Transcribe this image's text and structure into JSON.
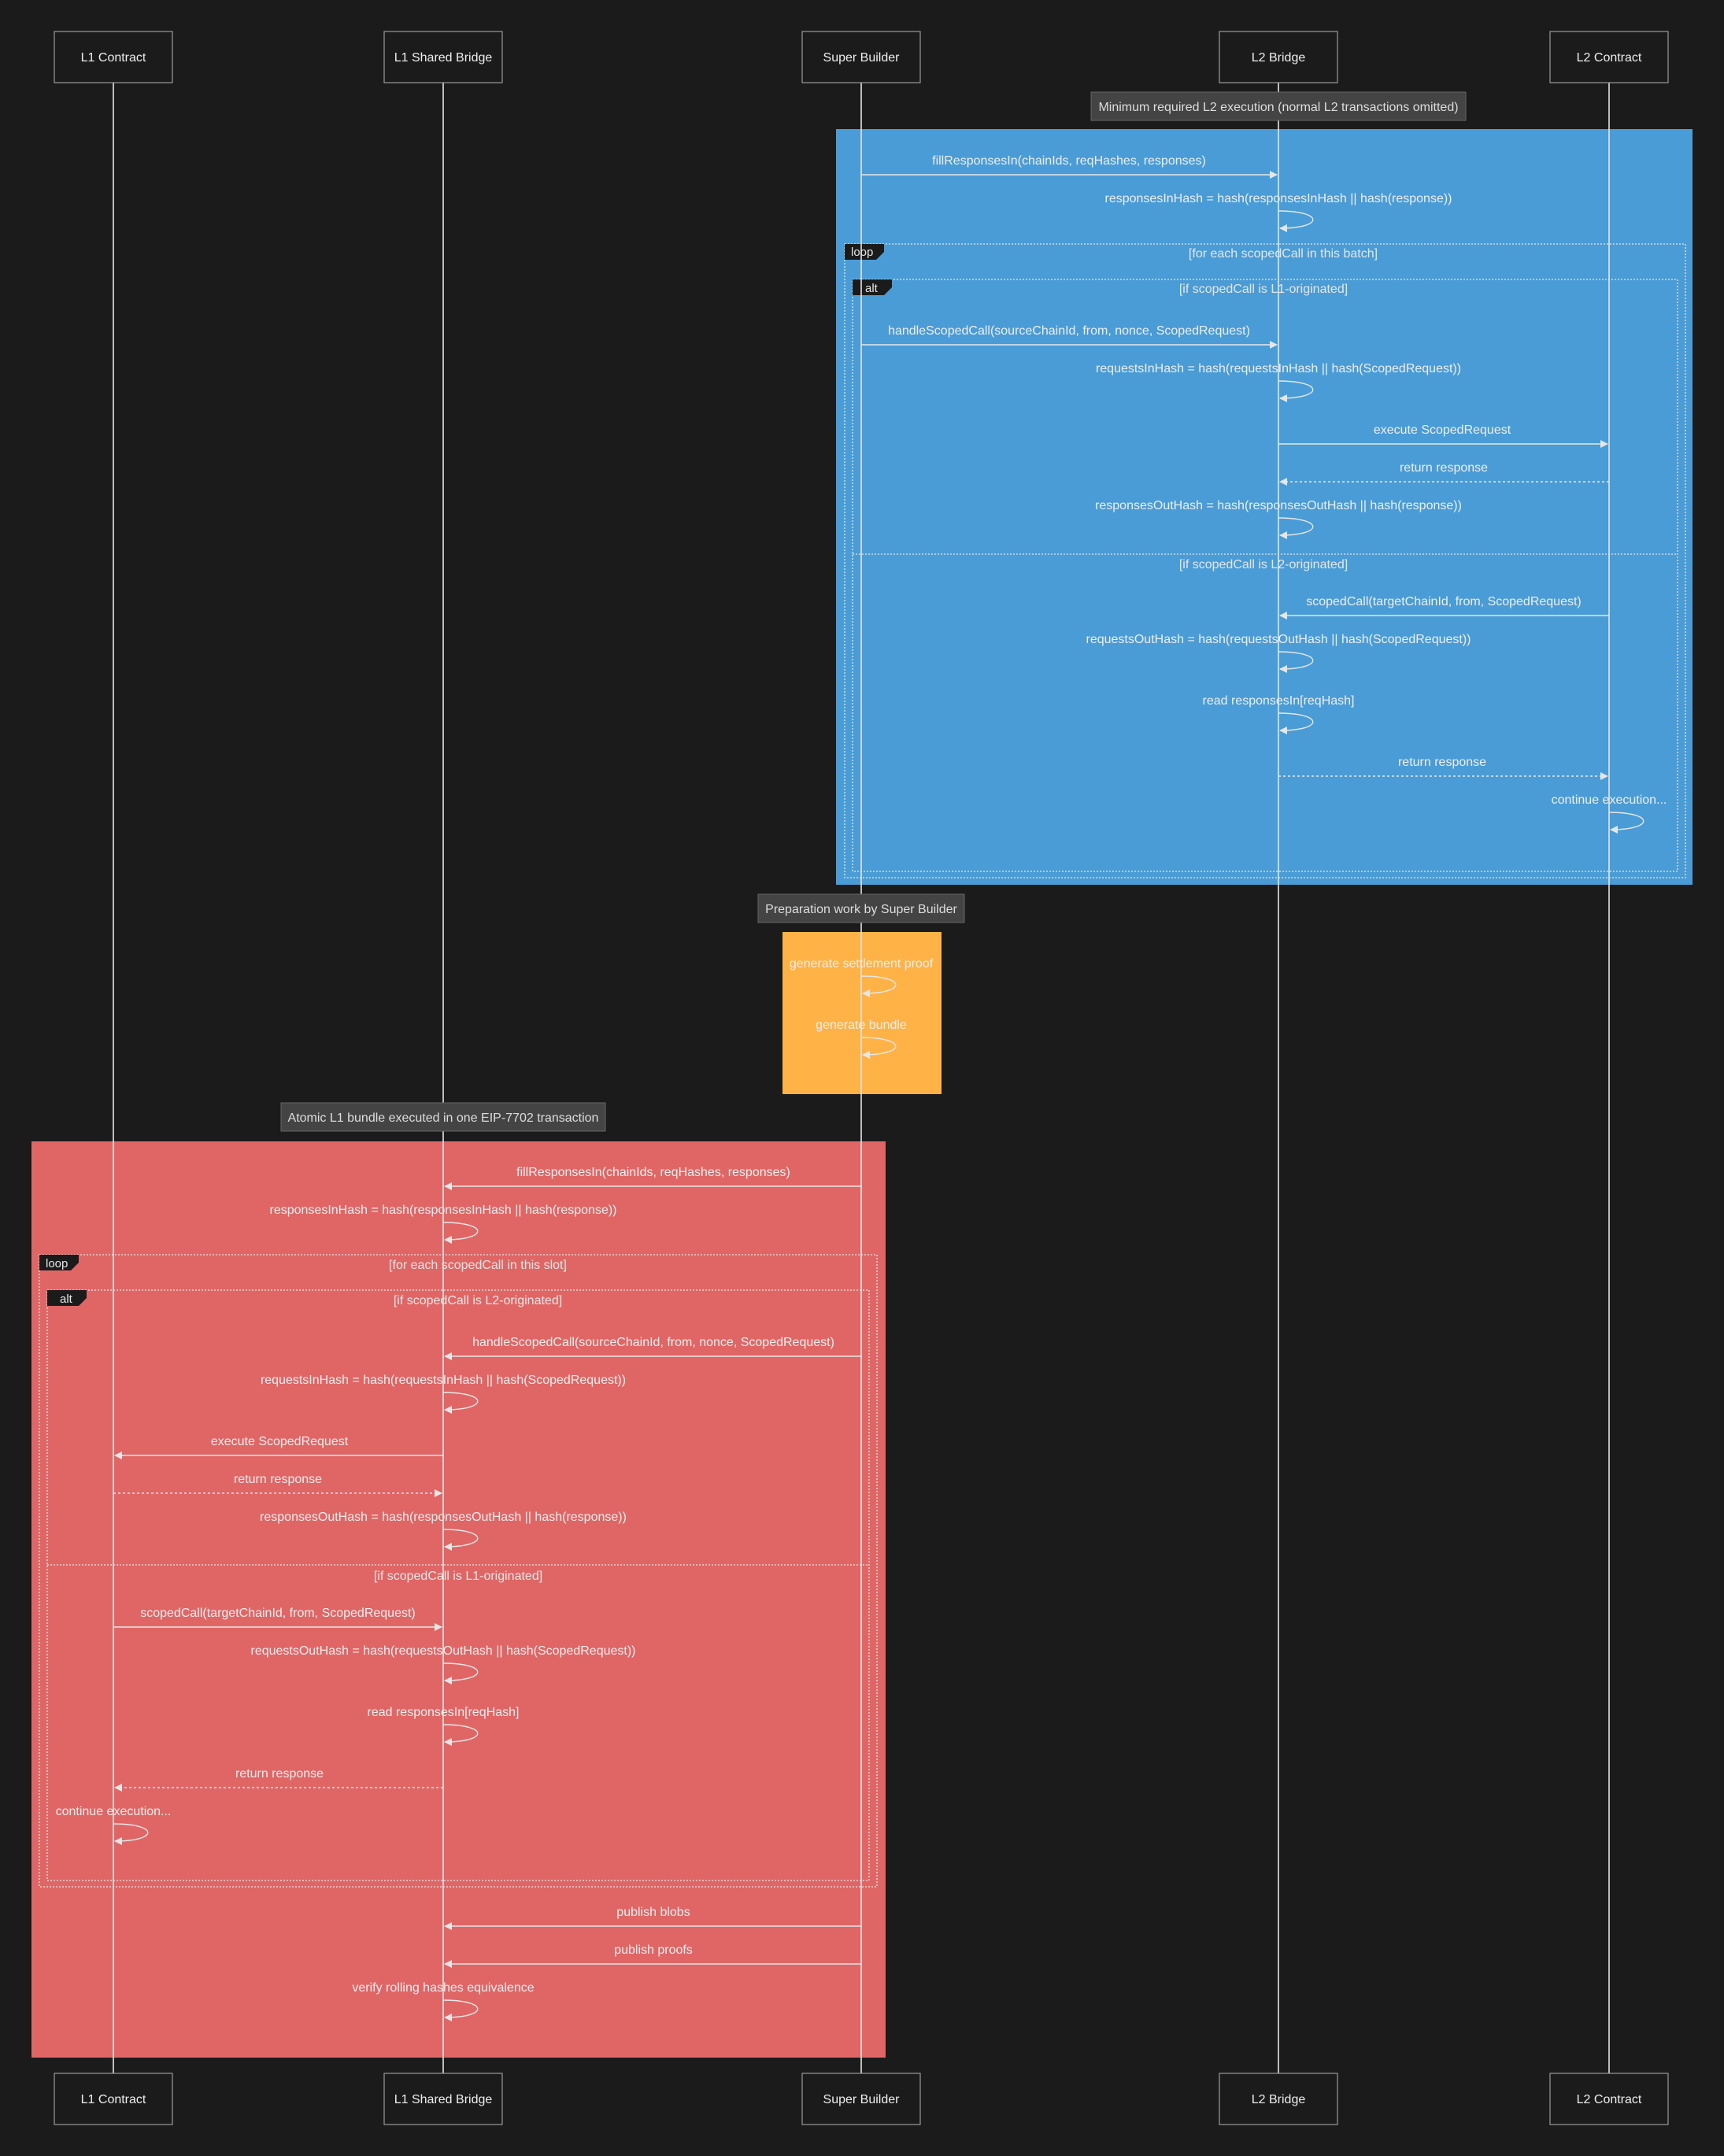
{
  "participants": [
    {
      "id": "l1c",
      "label": "L1 Contract"
    },
    {
      "id": "l1sb",
      "label": "L1 Shared Bridge"
    },
    {
      "id": "sb",
      "label": "Super Builder"
    },
    {
      "id": "l2b",
      "label": "L2 Bridge"
    },
    {
      "id": "l2c",
      "label": "L2 Contract"
    }
  ],
  "colors": {
    "background": "#1b1b1b",
    "l2_section": "#4a9cd6",
    "prep_section": "#ffb347",
    "l1_section": "#e06666",
    "line": "#e6e6e6",
    "note_bg": "#444444"
  },
  "notes": {
    "l2_section": "Minimum required L2 execution (normal L2 transactions omitted)",
    "prep_section": "Preparation work by Super Builder",
    "l1_section": "Atomic L1 bundle executed in one EIP-7702 transaction"
  },
  "l2": {
    "messages": [
      "fillResponsesIn(chainIds, reqHashes, responses)",
      "responsesInHash = hash(responsesInHash || hash(response))",
      "handleScopedCall(sourceChainId, from, nonce, ScopedRequest)",
      "requestsInHash = hash(requestsInHash || hash(ScopedRequest))",
      "execute ScopedRequest",
      "return response",
      "responsesOutHash = hash(responsesOutHash || hash(response))",
      "scopedCall(targetChainId, from, ScopedRequest)",
      "requestsOutHash = hash(requestsOutHash || hash(ScopedRequest))",
      "read responsesIn[reqHash]",
      "return response",
      "continue execution..."
    ],
    "loop_tag": "loop",
    "loop_condition": "[for each scopedCall in this batch]",
    "alt_tag": "alt",
    "alt_condition_1": "[if scopedCall is L1-originated]",
    "alt_condition_2": "[if scopedCall is L2-originated]"
  },
  "prep": {
    "messages": [
      "generate settlement proof",
      "generate bundle"
    ]
  },
  "l1": {
    "messages": [
      "fillResponsesIn(chainIds, reqHashes, responses)",
      "responsesInHash = hash(responsesInHash || hash(response))",
      "handleScopedCall(sourceChainId, from, nonce, ScopedRequest)",
      "requestsInHash = hash(requestsInHash || hash(ScopedRequest))",
      "execute ScopedRequest",
      "return response",
      "responsesOutHash = hash(responsesOutHash || hash(response))",
      "scopedCall(targetChainId, from, ScopedRequest)",
      "requestsOutHash = hash(requestsOutHash || hash(ScopedRequest))",
      "read responsesIn[reqHash]",
      "return response",
      "continue execution...",
      "publish blobs",
      "publish proofs",
      "verify rolling hashes equivalence"
    ],
    "loop_tag": "loop",
    "loop_condition": "[for each scopedCall in this slot]",
    "alt_tag": "alt",
    "alt_condition_1": "[if scopedCall is L2-originated]",
    "alt_condition_2": "[if scopedCall is L1-originated]"
  }
}
